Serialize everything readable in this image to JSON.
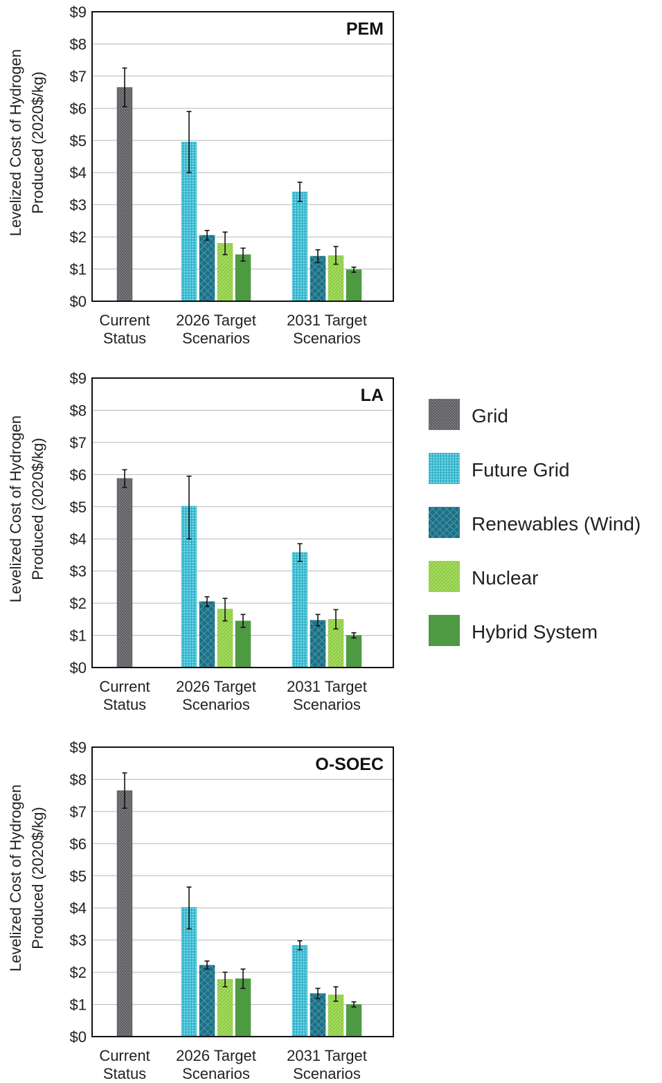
{
  "legend": [
    {
      "key": "grid",
      "label": "Grid",
      "color": "#5e5e62"
    },
    {
      "key": "future_grid",
      "label": "Future Grid",
      "color": "#45c1d6"
    },
    {
      "key": "renewables",
      "label": "Renewables (Wind)",
      "color": "#1d7085"
    },
    {
      "key": "nuclear",
      "label": "Nuclear",
      "color": "#8ccc3f"
    },
    {
      "key": "hybrid",
      "label": "Hybrid System",
      "color": "#4d9a42"
    }
  ],
  "chart_data": [
    {
      "type": "bar",
      "title": "PEM",
      "ylabel": "Levelized Cost of Hydrogen Produced (2020$/kg)",
      "ylabel_lines": [
        "Levelized Cost of Hydrogen",
        "Produced (2020$/kg)"
      ],
      "ylim": [
        0,
        9
      ],
      "yticks": [
        "$0",
        "$1",
        "$2",
        "$3",
        "$4",
        "$5",
        "$6",
        "$7",
        "$8",
        "$9"
      ],
      "grid": true,
      "categories": [
        [
          "Current",
          "Status"
        ],
        [
          "2026 Target",
          "Scenarios"
        ],
        [
          "2031 Target",
          "Scenarios"
        ]
      ],
      "bars": [
        {
          "category": 0,
          "series": "grid",
          "value": 6.65,
          "err": [
            6.05,
            7.25
          ]
        },
        {
          "category": 1,
          "series": "future_grid",
          "value": 4.95,
          "err": [
            4.0,
            5.9
          ]
        },
        {
          "category": 1,
          "series": "renewables",
          "value": 2.05,
          "err": [
            1.9,
            2.2
          ]
        },
        {
          "category": 1,
          "series": "nuclear",
          "value": 1.8,
          "err": [
            1.45,
            2.15
          ]
        },
        {
          "category": 1,
          "series": "hybrid",
          "value": 1.45,
          "err": [
            1.25,
            1.65
          ]
        },
        {
          "category": 2,
          "series": "future_grid",
          "value": 3.4,
          "err": [
            3.1,
            3.7
          ]
        },
        {
          "category": 2,
          "series": "renewables",
          "value": 1.4,
          "err": [
            1.2,
            1.6
          ]
        },
        {
          "category": 2,
          "series": "nuclear",
          "value": 1.42,
          "err": [
            1.15,
            1.7
          ]
        },
        {
          "category": 2,
          "series": "hybrid",
          "value": 0.98,
          "err": [
            0.9,
            1.06
          ]
        }
      ]
    },
    {
      "type": "bar",
      "title": "LA",
      "ylabel": "Levelized Cost of Hydrogen Produced (2020$/kg)",
      "ylabel_lines": [
        "Levelized Cost of Hydrogen",
        "Produced (2020$/kg)"
      ],
      "ylim": [
        0,
        9
      ],
      "yticks": [
        "$0",
        "$1",
        "$2",
        "$3",
        "$4",
        "$5",
        "$6",
        "$7",
        "$8",
        "$9"
      ],
      "grid": true,
      "categories": [
        [
          "Current",
          "Status"
        ],
        [
          "2026 Target",
          "Scenarios"
        ],
        [
          "2031 Target",
          "Scenarios"
        ]
      ],
      "bars": [
        {
          "category": 0,
          "series": "grid",
          "value": 5.88,
          "err": [
            5.6,
            6.15
          ]
        },
        {
          "category": 1,
          "series": "future_grid",
          "value": 5.02,
          "err": [
            4.0,
            5.95
          ]
        },
        {
          "category": 1,
          "series": "renewables",
          "value": 2.05,
          "err": [
            1.9,
            2.2
          ]
        },
        {
          "category": 1,
          "series": "nuclear",
          "value": 1.82,
          "err": [
            1.45,
            2.15
          ]
        },
        {
          "category": 1,
          "series": "hybrid",
          "value": 1.45,
          "err": [
            1.25,
            1.65
          ]
        },
        {
          "category": 2,
          "series": "future_grid",
          "value": 3.58,
          "err": [
            3.3,
            3.85
          ]
        },
        {
          "category": 2,
          "series": "renewables",
          "value": 1.47,
          "err": [
            1.3,
            1.65
          ]
        },
        {
          "category": 2,
          "series": "nuclear",
          "value": 1.5,
          "err": [
            1.2,
            1.8
          ]
        },
        {
          "category": 2,
          "series": "hybrid",
          "value": 1.0,
          "err": [
            0.92,
            1.08
          ]
        }
      ]
    },
    {
      "type": "bar",
      "title": "O-SOEC",
      "ylabel": "Levelized Cost of Hydrogen Produced (2020$/kg)",
      "ylabel_lines": [
        "Levelized Cost of Hydrogen",
        "Produced (2020$/kg)"
      ],
      "ylim": [
        0,
        9
      ],
      "yticks": [
        "$0",
        "$1",
        "$2",
        "$3",
        "$4",
        "$5",
        "$6",
        "$7",
        "$8",
        "$9"
      ],
      "grid": true,
      "categories": [
        [
          "Current",
          "Status"
        ],
        [
          "2026 Target",
          "Scenarios"
        ],
        [
          "2031 Target",
          "Scenarios"
        ]
      ],
      "bars": [
        {
          "category": 0,
          "series": "grid",
          "value": 7.65,
          "err": [
            7.1,
            8.2
          ]
        },
        {
          "category": 1,
          "series": "future_grid",
          "value": 4.02,
          "err": [
            3.35,
            4.65
          ]
        },
        {
          "category": 1,
          "series": "renewables",
          "value": 2.22,
          "err": [
            2.1,
            2.35
          ]
        },
        {
          "category": 1,
          "series": "nuclear",
          "value": 1.78,
          "err": [
            1.55,
            2.0
          ]
        },
        {
          "category": 1,
          "series": "hybrid",
          "value": 1.8,
          "err": [
            1.5,
            2.1
          ]
        },
        {
          "category": 2,
          "series": "future_grid",
          "value": 2.84,
          "err": [
            2.7,
            2.98
          ]
        },
        {
          "category": 2,
          "series": "renewables",
          "value": 1.34,
          "err": [
            1.18,
            1.5
          ]
        },
        {
          "category": 2,
          "series": "nuclear",
          "value": 1.3,
          "err": [
            1.1,
            1.55
          ]
        },
        {
          "category": 2,
          "series": "hybrid",
          "value": 1.0,
          "err": [
            0.92,
            1.08
          ]
        }
      ]
    }
  ]
}
